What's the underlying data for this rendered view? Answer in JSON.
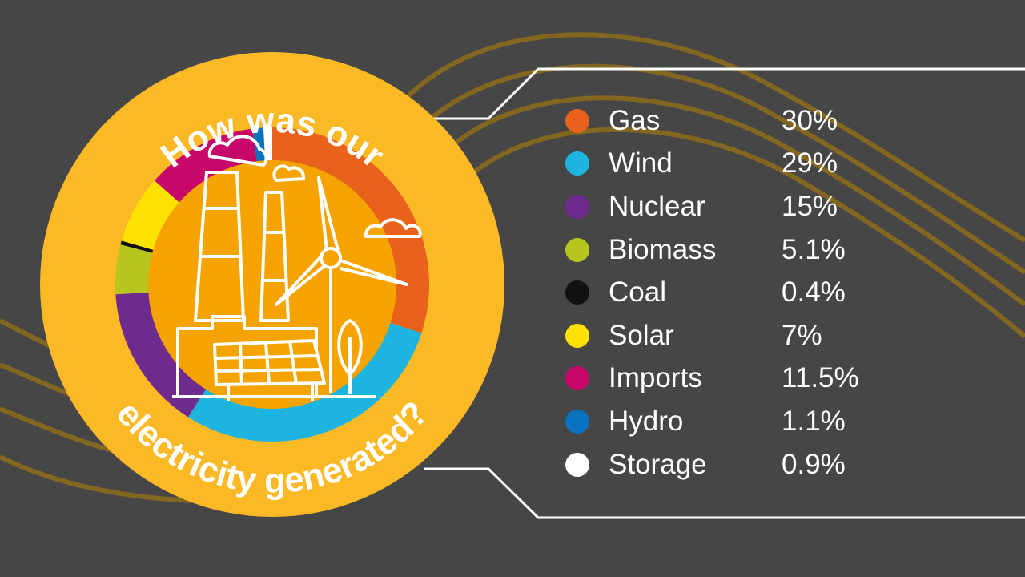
{
  "title_top": "How was our",
  "title_bottom": "electricity generated?",
  "chart_data": {
    "type": "pie",
    "title": "How was our electricity generated?",
    "donut": true,
    "categories": [
      "Gas",
      "Wind",
      "Nuclear",
      "Biomass",
      "Coal",
      "Solar",
      "Imports",
      "Hydro",
      "Storage"
    ],
    "values": [
      30,
      29,
      15,
      5.1,
      0.4,
      7,
      11.5,
      1.1,
      0.9
    ],
    "value_labels": [
      "30%",
      "29%",
      "15%",
      "5.1%",
      "0.4%",
      "7%",
      "11.5%",
      "1.1%",
      "0.9%"
    ],
    "colors": [
      "#e8621b",
      "#1eb4e0",
      "#6e2a8c",
      "#b8c51e",
      "#111111",
      "#fde100",
      "#c8076a",
      "#0a73c0",
      "#ffffff"
    ],
    "legend_position": "right"
  },
  "colors": {
    "background": "#464646",
    "badge": "#fbb926",
    "inner_disc": "#f5a300",
    "wave": "#8a6a1c"
  }
}
